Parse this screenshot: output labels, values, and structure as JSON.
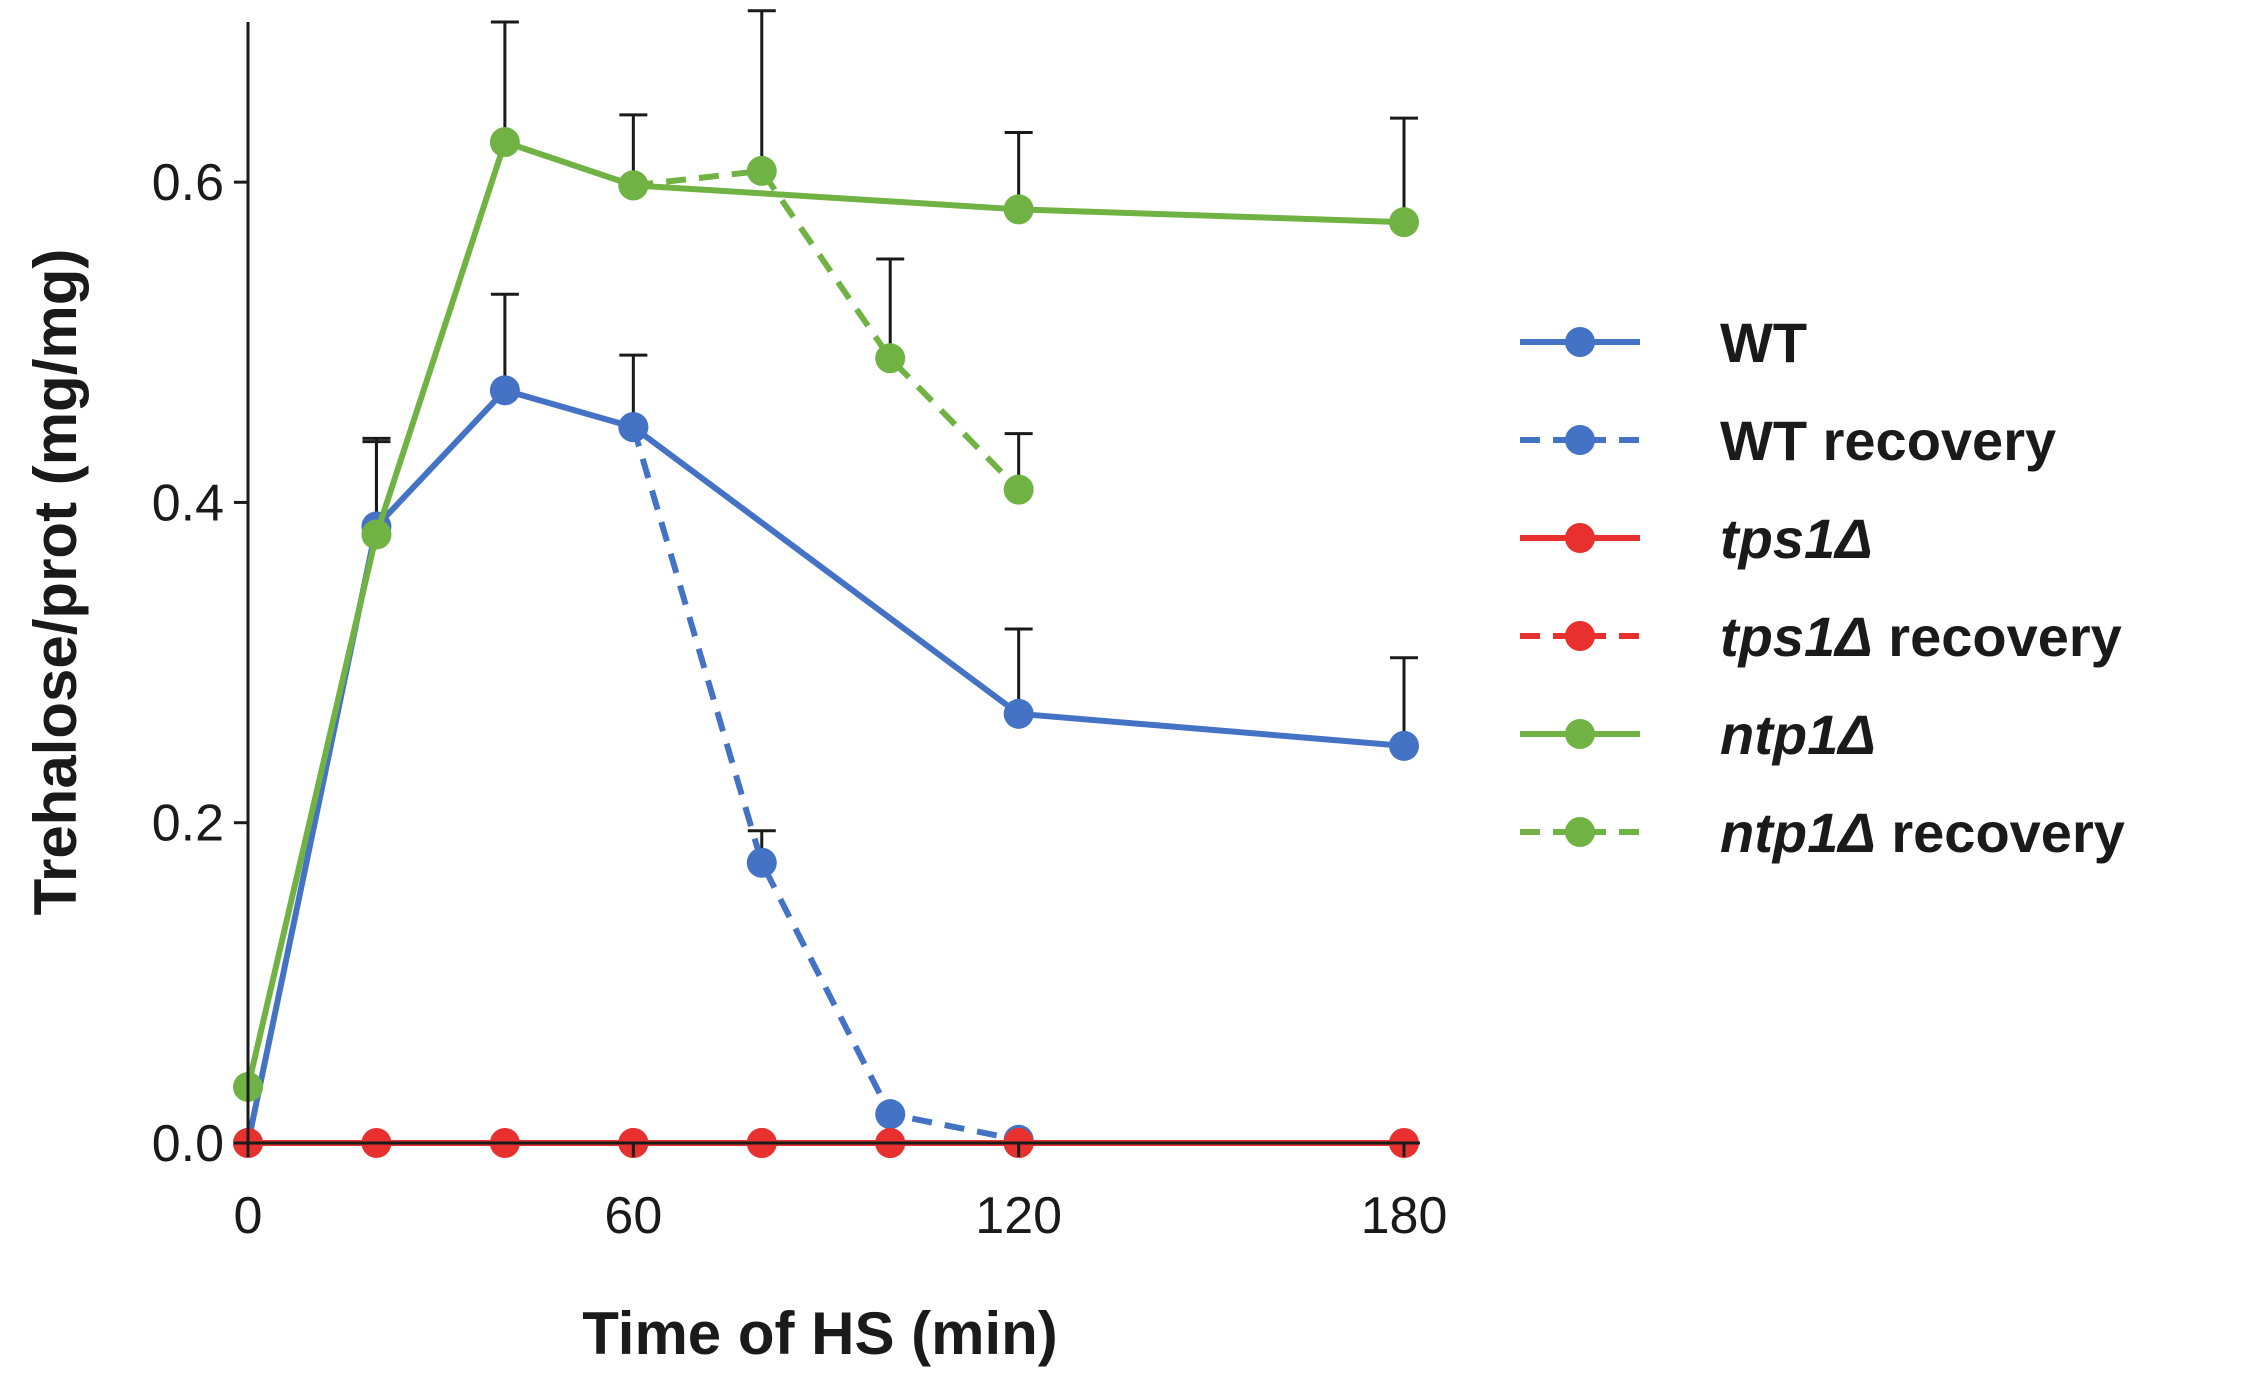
{
  "chart_data": {
    "type": "line",
    "title": "",
    "xlabel": "Time of HS (min)",
    "ylabel": "Trehalose/prot (mg/mg)",
    "xlim": [
      0,
      180
    ],
    "ylim": [
      0,
      0.7
    ],
    "xticks": [
      0,
      60,
      120,
      180
    ],
    "xtick_labels": [
      "0",
      "60",
      "120",
      "180"
    ],
    "yticks": [
      0.0,
      0.2,
      0.4,
      0.6
    ],
    "ytick_labels": [
      "0.0",
      "0.2",
      "0.4",
      "0.6"
    ],
    "grid": false,
    "legend_position": "right",
    "series": [
      {
        "name": "WT",
        "legend_main": "WT",
        "legend_suffix": "",
        "italic": false,
        "color": "#4472C4",
        "dashed": false,
        "x": [
          0,
          20,
          40,
          60,
          120,
          180
        ],
        "y": [
          0.0,
          0.385,
          0.47,
          0.447,
          0.268,
          0.248
        ],
        "err": [
          0.0,
          0.055,
          0.06,
          0.045,
          0.053,
          0.055
        ]
      },
      {
        "name": "WT recovery",
        "legend_main": "WT recovery",
        "legend_suffix": "",
        "italic": false,
        "color": "#4472C4",
        "dashed": true,
        "x": [
          60,
          80,
          100,
          120
        ],
        "y": [
          0.447,
          0.175,
          0.018,
          0.002
        ],
        "err": [
          0.0,
          0.02,
          0.0,
          0.0
        ]
      },
      {
        "name": "tps1Δ",
        "legend_main": "tps1Δ",
        "legend_suffix": "",
        "italic": true,
        "color": "#E8312F",
        "dashed": false,
        "x": [
          0,
          20,
          40,
          60,
          80,
          100,
          120,
          180
        ],
        "y": [
          0,
          0,
          0,
          0,
          0,
          0,
          0,
          0
        ],
        "err": [
          0,
          0,
          0,
          0,
          0,
          0,
          0,
          0
        ]
      },
      {
        "name": "tps1Δ recovery",
        "legend_main": "tps1Δ",
        "legend_suffix": " recovery",
        "italic": true,
        "color": "#E8312F",
        "dashed": true,
        "x": [
          60,
          80,
          100,
          120
        ],
        "y": [
          0,
          0,
          0,
          0
        ],
        "err": [
          0,
          0,
          0,
          0
        ]
      },
      {
        "name": "ntp1Δ",
        "legend_main": "ntp1Δ",
        "legend_suffix": "",
        "italic": true,
        "color": "#70B244",
        "dashed": false,
        "x": [
          0,
          20,
          40,
          60,
          120,
          180
        ],
        "y": [
          0.035,
          0.38,
          0.625,
          0.598,
          0.583,
          0.575
        ],
        "err": [
          0.0,
          0.058,
          0.075,
          0.044,
          0.048,
          0.065
        ]
      },
      {
        "name": "ntp1Δ recovery",
        "legend_main": "ntp1Δ",
        "legend_suffix": " recovery",
        "italic": true,
        "color": "#70B244",
        "dashed": true,
        "x": [
          60,
          80,
          100,
          120
        ],
        "y": [
          0.598,
          0.607,
          0.49,
          0.408
        ],
        "err": [
          0.0,
          0.1,
          0.062,
          0.035
        ]
      }
    ]
  }
}
